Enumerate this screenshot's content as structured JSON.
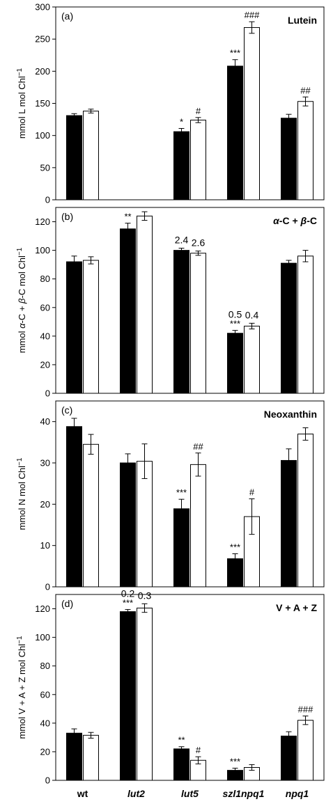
{
  "chart_data": {
    "type": "bar",
    "categories": [
      "wt",
      "lut2",
      "lut5",
      "szl1npq1",
      "npq1"
    ],
    "category_styles": [
      "bold",
      "bold-italic",
      "bold-italic",
      "bold-italic",
      "bold-italic"
    ],
    "series_colors": [
      "#000000",
      "#ffffff"
    ],
    "grid": false,
    "panels": [
      {
        "label": "(a)",
        "title": "Lutein",
        "ylabel": [
          "mmol L mol Chl",
          "−1"
        ],
        "ylim": [
          0,
          300
        ],
        "yticks": [
          "0",
          "50",
          "100",
          "150",
          "200",
          "250",
          "300"
        ],
        "series": [
          {
            "values": [
              131,
              null,
              106,
              208,
              127
            ],
            "errors": [
              3,
              null,
              5,
              10,
              6
            ]
          },
          {
            "values": [
              138,
              null,
              124,
              268,
              153
            ],
            "errors": [
              3,
              null,
              4,
              9,
              7
            ]
          }
        ],
        "annotations": [
          {
            "cat": 2,
            "series": 0,
            "text": "*",
            "kind": "sig"
          },
          {
            "cat": 2,
            "series": 1,
            "text": "#",
            "kind": "sig"
          },
          {
            "cat": 3,
            "series": 0,
            "text": "***",
            "kind": "sig"
          },
          {
            "cat": 3,
            "series": 1,
            "text": "###",
            "kind": "sig"
          },
          {
            "cat": 4,
            "series": 1,
            "text": "##",
            "kind": "sig"
          }
        ]
      },
      {
        "label": "(b)",
        "title_parts": [
          {
            "text": "α",
            "italic": true
          },
          {
            "text": "-C + "
          },
          {
            "text": "β",
            "italic": true
          },
          {
            "text": "-C"
          }
        ],
        "ylabel_parts": [
          {
            "text": "mmol "
          },
          {
            "text": "α",
            "italic": true
          },
          {
            "text": "-C + "
          },
          {
            "text": "β",
            "italic": true
          },
          {
            "text": "-C mol Chl"
          },
          {
            "text": "−1",
            "sup": true
          }
        ],
        "ylim": [
          0,
          130
        ],
        "yticks": [
          "0",
          "20",
          "40",
          "60",
          "80",
          "100",
          "120"
        ],
        "series": [
          {
            "values": [
              92,
              115,
              100,
              42,
              91
            ],
            "errors": [
              4,
              4,
              1.5,
              2,
              2
            ]
          },
          {
            "values": [
              93,
              124,
              98,
              47,
              96
            ],
            "errors": [
              2.5,
              3,
              1.5,
              2,
              4
            ]
          }
        ],
        "annotations": [
          {
            "cat": 1,
            "series": 0,
            "text": "**",
            "kind": "sig"
          },
          {
            "cat": 2,
            "series": 0,
            "text": "2.4",
            "kind": "ratio"
          },
          {
            "cat": 2,
            "series": 1,
            "text": "2.6",
            "kind": "ratio"
          },
          {
            "cat": 3,
            "series": 0,
            "text": "***",
            "kind": "sig"
          },
          {
            "cat": 3,
            "series": 0,
            "text": "0.5",
            "kind": "ratio"
          },
          {
            "cat": 3,
            "series": 1,
            "text": "0.4",
            "kind": "ratio"
          }
        ]
      },
      {
        "label": "(c)",
        "title": "Neoxanthin",
        "ylabel": [
          "mmol N mol Chl",
          "−1"
        ],
        "ylim": [
          0,
          45
        ],
        "yticks": [
          "0",
          "10",
          "20",
          "30",
          "40"
        ],
        "series": [
          {
            "values": [
              38.8,
              30.0,
              18.9,
              6.8,
              30.6
            ],
            "errors": [
              2.0,
              2.2,
              2.3,
              1.2,
              2.8
            ]
          },
          {
            "values": [
              34.5,
              30.4,
              29.6,
              17.0,
              37.0
            ],
            "errors": [
              2.4,
              4.2,
              2.8,
              4.3,
              1.5
            ]
          }
        ],
        "annotations": [
          {
            "cat": 2,
            "series": 0,
            "text": "***",
            "kind": "sig"
          },
          {
            "cat": 2,
            "series": 1,
            "text": "##",
            "kind": "sig"
          },
          {
            "cat": 3,
            "series": 0,
            "text": "***",
            "kind": "sig"
          },
          {
            "cat": 3,
            "series": 1,
            "text": "#",
            "kind": "sig"
          }
        ]
      },
      {
        "label": "(d)",
        "title": "V + A + Z",
        "ylabel": [
          "mmol V + A + Z mol Chl",
          "−1"
        ],
        "ylim": [
          0,
          130
        ],
        "yticks": [
          "0",
          "20",
          "40",
          "60",
          "80",
          "100",
          "120"
        ],
        "series": [
          {
            "values": [
              33,
              118,
              22,
              7,
              31
            ],
            "errors": [
              3,
              1.5,
              1.5,
              1.5,
              3
            ]
          },
          {
            "values": [
              31.5,
              120.5,
              14,
              9,
              42
            ],
            "errors": [
              2,
              3,
              2.5,
              2,
              3
            ]
          }
        ],
        "annotations": [
          {
            "cat": 1,
            "series": 0,
            "text": "***",
            "kind": "sig"
          },
          {
            "cat": 1,
            "series": 0,
            "text": "0.2",
            "kind": "ratio"
          },
          {
            "cat": 1,
            "series": 1,
            "text": "0.3",
            "kind": "ratio"
          },
          {
            "cat": 2,
            "series": 0,
            "text": "**",
            "kind": "sig"
          },
          {
            "cat": 2,
            "series": 1,
            "text": "#",
            "kind": "sig"
          },
          {
            "cat": 3,
            "series": 0,
            "text": "***",
            "kind": "sig"
          },
          {
            "cat": 4,
            "series": 1,
            "text": "###",
            "kind": "sig"
          }
        ]
      }
    ]
  }
}
